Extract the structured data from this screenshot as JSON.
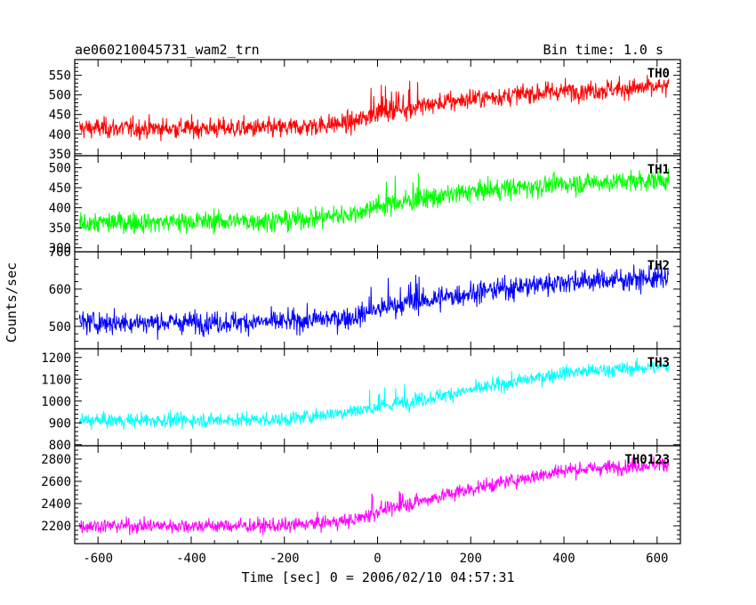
{
  "header": {
    "title": "ae060210045731_wam2_trn",
    "bin_time": "Bin time: 1.0 s"
  },
  "chart_data": {
    "type": "line",
    "xlabel": "Time [sec] 0 = 2006/02/10 04:57:31",
    "ylabel": "Counts/sec",
    "xlim": [
      -650,
      650
    ],
    "x_ticks": [
      -600,
      -400,
      -200,
      0,
      200,
      400,
      600
    ],
    "x_range": [
      -640,
      625
    ],
    "panels": [
      {
        "name": "TH0",
        "color": "#ff0000",
        "ylim": [
          345,
          590
        ],
        "y_ticks": [
          350,
          400,
          450,
          500,
          550
        ],
        "trend": [
          [
            -640,
            415
          ],
          [
            -200,
            415
          ],
          [
            -50,
            430
          ],
          [
            0,
            455
          ],
          [
            200,
            490
          ],
          [
            400,
            510
          ],
          [
            625,
            520
          ]
        ],
        "noise": 22
      },
      {
        "name": "TH1",
        "color": "#00ff00",
        "ylim": [
          290,
          530
        ],
        "y_ticks": [
          300,
          350,
          400,
          450,
          500
        ],
        "trend": [
          [
            -640,
            362
          ],
          [
            -200,
            368
          ],
          [
            -50,
            385
          ],
          [
            0,
            405
          ],
          [
            200,
            440
          ],
          [
            400,
            460
          ],
          [
            625,
            470
          ]
        ],
        "noise": 22
      },
      {
        "name": "TH2",
        "color": "#0000ff",
        "ylim": [
          440,
          700
        ],
        "y_ticks": [
          500,
          600,
          700
        ],
        "trend": [
          [
            -640,
            510
          ],
          [
            -200,
            512
          ],
          [
            -50,
            525
          ],
          [
            0,
            545
          ],
          [
            200,
            590
          ],
          [
            400,
            620
          ],
          [
            625,
            630
          ]
        ],
        "noise": 25
      },
      {
        "name": "TH3",
        "color": "#00ffff",
        "ylim": [
          795,
          1240
        ],
        "y_ticks": [
          800,
          900,
          1000,
          1100,
          1200
        ],
        "trend": [
          [
            -640,
            910
          ],
          [
            -200,
            915
          ],
          [
            0,
            970
          ],
          [
            200,
            1050
          ],
          [
            400,
            1130
          ],
          [
            625,
            1160
          ]
        ],
        "noise": 28
      },
      {
        "name": "TH0123",
        "color": "#ff00ff",
        "ylim": [
          2040,
          2920
        ],
        "y_ticks": [
          2200,
          2400,
          2600,
          2800
        ],
        "trend": [
          [
            -640,
            2200
          ],
          [
            -200,
            2200
          ],
          [
            -50,
            2250
          ],
          [
            0,
            2330
          ],
          [
            200,
            2530
          ],
          [
            400,
            2700
          ],
          [
            625,
            2760
          ]
        ],
        "noise": 55
      }
    ]
  }
}
